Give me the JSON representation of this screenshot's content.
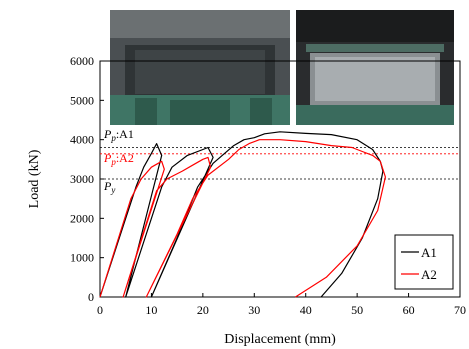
{
  "chart_data": {
    "type": "line",
    "title": "",
    "xlabel": "Displacement (mm)",
    "ylabel": "Load (kN)",
    "xlim": [
      0,
      70
    ],
    "ylim": [
      0,
      6000
    ],
    "xticks": [
      "0",
      "10",
      "20",
      "30",
      "40",
      "50",
      "60",
      "70"
    ],
    "yticks": [
      "0",
      "1000",
      "2000",
      "3000",
      "4000",
      "5000",
      "6000"
    ],
    "grid": false,
    "legend_position": "bottom-right",
    "reference_lines": [
      {
        "label": "Pp:A1",
        "value": 3800,
        "color": "#000000"
      },
      {
        "label": "Pp:A2",
        "value": 3640,
        "color": "#ff0000"
      },
      {
        "label": "Py",
        "value": 3000,
        "color": "#000000"
      }
    ],
    "annotations": {
      "pp_a1": {
        "base": "P",
        "sub": "p",
        "suffix": ":A1",
        "color": "#000000"
      },
      "pp_a2": {
        "base": "P",
        "sub": "p",
        "suffix": ":A2",
        "color": "#ff0000"
      },
      "py": {
        "base": "P",
        "sub": "y",
        "suffix": "",
        "color": "#000000"
      }
    },
    "series": [
      {
        "name": "A1",
        "color": "#000000",
        "points": [
          [
            0,
            0
          ],
          [
            7,
            2800
          ],
          [
            8.5,
            3300
          ],
          [
            10,
            3650
          ],
          [
            11,
            3900
          ],
          [
            12,
            3600
          ],
          [
            5,
            0
          ],
          [
            12,
            2800
          ],
          [
            14,
            3300
          ],
          [
            17,
            3600
          ],
          [
            20,
            3750
          ],
          [
            21,
            3800
          ],
          [
            22,
            3550
          ],
          [
            10,
            0
          ],
          [
            15,
            1500
          ],
          [
            19,
            2800
          ],
          [
            22,
            3400
          ],
          [
            26,
            3850
          ],
          [
            28,
            4000
          ],
          [
            30,
            4050
          ],
          [
            32,
            4150
          ],
          [
            35,
            4200
          ],
          [
            40,
            4160
          ],
          [
            45,
            4130
          ],
          [
            50,
            4000
          ],
          [
            53,
            3750
          ],
          [
            54.5,
            3450
          ],
          [
            55,
            3200
          ],
          [
            54,
            2500
          ],
          [
            51,
            1500
          ],
          [
            47,
            600
          ],
          [
            43,
            0
          ]
        ]
      },
      {
        "name": "A2",
        "color": "#ff0000",
        "points": [
          [
            0,
            0
          ],
          [
            6,
            2500
          ],
          [
            8,
            3000
          ],
          [
            10,
            3300
          ],
          [
            12,
            3450
          ],
          [
            12.5,
            3250
          ],
          [
            4.5,
            0
          ],
          [
            11,
            2700
          ],
          [
            13,
            3000
          ],
          [
            16,
            3200
          ],
          [
            18,
            3350
          ],
          [
            20,
            3500
          ],
          [
            21,
            3550
          ],
          [
            21.5,
            3300
          ],
          [
            9,
            0
          ],
          [
            15,
            1600
          ],
          [
            18,
            2500
          ],
          [
            21,
            3100
          ],
          [
            25,
            3500
          ],
          [
            27,
            3750
          ],
          [
            29,
            3900
          ],
          [
            31,
            4000
          ],
          [
            35,
            4000
          ],
          [
            40,
            3950
          ],
          [
            45,
            3850
          ],
          [
            49,
            3800
          ],
          [
            51,
            3700
          ],
          [
            53,
            3600
          ],
          [
            54.5,
            3450
          ],
          [
            55.5,
            3050
          ],
          [
            54,
            2200
          ],
          [
            50,
            1300
          ],
          [
            44,
            500
          ],
          [
            38,
            0
          ]
        ]
      }
    ]
  }
}
